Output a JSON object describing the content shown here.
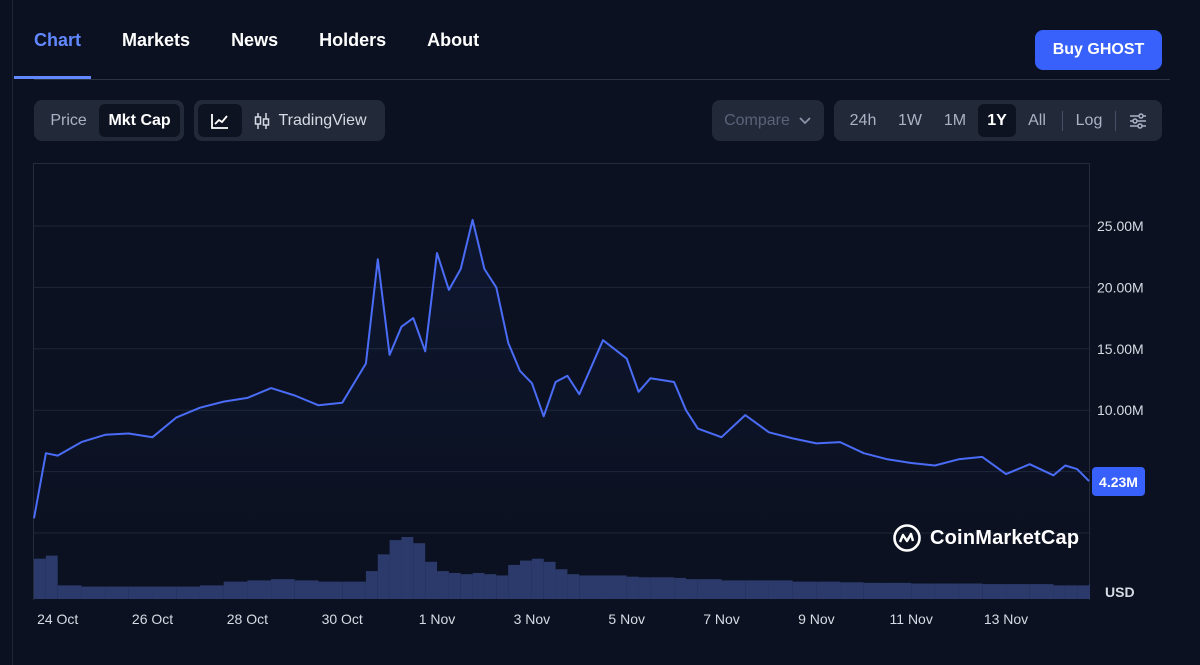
{
  "tabs": [
    {
      "label": "Chart",
      "active": true
    },
    {
      "label": "Markets",
      "active": false
    },
    {
      "label": "News",
      "active": false
    },
    {
      "label": "Holders",
      "active": false
    },
    {
      "label": "About",
      "active": false
    }
  ],
  "buy_button": "Buy GHOST",
  "metric_toggle": [
    {
      "label": "Price",
      "selected": false
    },
    {
      "label": "Mkt Cap",
      "selected": true
    }
  ],
  "chart_style": {
    "line_icon": "line-chart-icon",
    "tradingview_icon": "candlestick-icon",
    "tradingview_label": "TradingView"
  },
  "compare": {
    "label": "Compare",
    "icon": "chevron-down-icon"
  },
  "ranges": [
    {
      "label": "24h",
      "selected": false
    },
    {
      "label": "1W",
      "selected": false
    },
    {
      "label": "1M",
      "selected": false
    },
    {
      "label": "1Y",
      "selected": true
    },
    {
      "label": "All",
      "selected": false
    }
  ],
  "log_label": "Log",
  "settings_icon": "sliders-icon",
  "watermark": "CoinMarketCap",
  "currency": "USD",
  "colors": {
    "line": "#4a6cf7",
    "accent": "#3861fb",
    "volume": "#2b3a6b",
    "background": "#0b1120"
  },
  "chart_data": {
    "type": "line",
    "series": [
      {
        "name": "Mkt Cap",
        "unit": "USD"
      }
    ],
    "x": [
      "23 Oct 12h",
      "23 Oct 18h",
      "24 Oct 0h",
      "24 Oct 12h",
      "25 Oct 0h",
      "25 Oct 12h",
      "26 Oct 0h",
      "26 Oct 12h",
      "27 Oct 0h",
      "27 Oct 12h",
      "28 Oct 0h",
      "28 Oct 12h",
      "29 Oct 0h",
      "29 Oct 12h",
      "30 Oct 0h",
      "30 Oct 12h",
      "30 Oct 18h",
      "31 Oct 0h",
      "31 Oct 6h",
      "31 Oct 12h",
      "31 Oct 18h",
      "1 Nov 0h",
      "1 Nov 6h",
      "1 Nov 12h",
      "1 Nov 18h",
      "2 Nov 0h",
      "2 Nov 6h",
      "2 Nov 12h",
      "2 Nov 18h",
      "3 Nov 0h",
      "3 Nov 6h",
      "3 Nov 12h",
      "3 Nov 18h",
      "4 Nov 0h",
      "4 Nov 12h",
      "5 Nov 0h",
      "5 Nov 6h",
      "5 Nov 12h",
      "6 Nov 0h",
      "6 Nov 6h",
      "6 Nov 12h",
      "7 Nov 0h",
      "7 Nov 12h",
      "8 Nov 0h",
      "8 Nov 12h",
      "9 Nov 0h",
      "9 Nov 12h",
      "10 Nov 0h",
      "10 Nov 12h",
      "11 Nov 0h",
      "11 Nov 12h",
      "12 Nov 0h",
      "12 Nov 12h",
      "13 Nov 0h",
      "13 Nov 12h",
      "14 Nov 0h",
      "14 Nov 6h",
      "14 Nov 12h",
      "14 Nov 18h"
    ],
    "values": [
      1.2,
      6.5,
      6.3,
      7.4,
      8.0,
      8.1,
      7.8,
      9.4,
      10.2,
      10.7,
      11.0,
      11.8,
      11.2,
      10.4,
      10.6,
      13.8,
      22.3,
      14.5,
      16.8,
      17.5,
      14.8,
      22.8,
      19.8,
      21.5,
      25.5,
      21.5,
      20.0,
      15.5,
      13.2,
      12.2,
      9.5,
      12.3,
      12.8,
      11.3,
      15.7,
      14.2,
      11.5,
      12.6,
      12.3,
      10.0,
      8.5,
      7.8,
      9.6,
      8.2,
      7.7,
      7.3,
      7.4,
      6.5,
      6.0,
      5.7,
      5.5,
      6.0,
      6.2,
      4.8,
      5.6,
      4.7,
      5.5,
      5.2,
      4.23
    ],
    "volume_relative": [
      0.65,
      0.7,
      0.22,
      0.2,
      0.2,
      0.2,
      0.2,
      0.2,
      0.22,
      0.28,
      0.3,
      0.32,
      0.3,
      0.28,
      0.28,
      0.45,
      0.72,
      0.95,
      1.0,
      0.9,
      0.6,
      0.45,
      0.42,
      0.4,
      0.42,
      0.4,
      0.38,
      0.55,
      0.62,
      0.65,
      0.6,
      0.48,
      0.4,
      0.38,
      0.38,
      0.36,
      0.35,
      0.35,
      0.34,
      0.32,
      0.32,
      0.3,
      0.3,
      0.3,
      0.28,
      0.28,
      0.27,
      0.26,
      0.26,
      0.25,
      0.25,
      0.25,
      0.24,
      0.24,
      0.24,
      0.22,
      0.22,
      0.22,
      0.25
    ],
    "y_ticks": [
      "10.00M",
      "15.00M",
      "20.00M",
      "25.00M"
    ],
    "y_tick_values": [
      10,
      15,
      20,
      25
    ],
    "ylim": [
      0,
      30
    ],
    "x_ticks": [
      "24 Oct",
      "26 Oct",
      "28 Oct",
      "30 Oct",
      "1 Nov",
      "3 Nov",
      "5 Nov",
      "7 Nov",
      "9 Nov",
      "11 Nov",
      "13 Nov"
    ],
    "current_value_label": "4.23M",
    "grid": "horizontal"
  }
}
